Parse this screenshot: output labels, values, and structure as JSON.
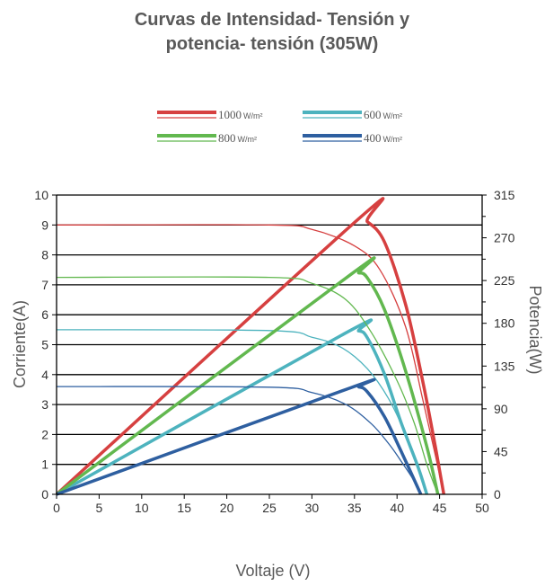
{
  "chart_data": {
    "type": "line",
    "title_lines": [
      "Curvas de Intensidad- Tensión y",
      "potencia- tensión  (305W)"
    ],
    "xlabel": "Voltaje (V)",
    "ylabel_left": "Corriente(A)",
    "ylabel_right": "Potencia(W)",
    "xlim": [
      0,
      50
    ],
    "ylim_left": [
      0,
      10
    ],
    "ylim_right": [
      0,
      315
    ],
    "x_ticks": [
      0,
      5,
      10,
      15,
      20,
      25,
      30,
      35,
      40,
      45,
      50
    ],
    "y_left_ticks": [
      0,
      1,
      2,
      3,
      4,
      5,
      6,
      7,
      8,
      9,
      10
    ],
    "y_right_ticks": [
      0,
      45,
      90,
      135,
      180,
      225,
      270,
      315
    ],
    "grid": "horizontal",
    "legend_position": "top",
    "series": [
      {
        "name": "1000",
        "unit": "W/m²",
        "color": "#d64040",
        "current": [
          [
            0,
            9.0
          ],
          [
            25,
            9.0
          ],
          [
            30,
            8.85
          ],
          [
            35,
            8.3
          ],
          [
            38,
            7.5
          ],
          [
            41,
            5.6
          ],
          [
            43,
            3.2
          ],
          [
            44.5,
            1.3
          ],
          [
            45.5,
            0
          ]
        ],
        "power": [
          [
            0,
            0
          ],
          [
            35.5,
            290
          ],
          [
            36.5,
            287
          ],
          [
            38.5,
            266
          ],
          [
            41,
            200
          ],
          [
            43,
            120
          ],
          [
            44.5,
            50
          ],
          [
            45.5,
            0
          ]
        ]
      },
      {
        "name": "600",
        "unit": "W/m²",
        "color": "#4db3be",
        "current": [
          [
            0,
            5.5
          ],
          [
            25,
            5.47
          ],
          [
            30,
            5.25
          ],
          [
            33.5,
            4.9
          ],
          [
            36.5,
            4.2
          ],
          [
            39,
            3.2
          ],
          [
            41,
            2.0
          ],
          [
            42.5,
            0.8
          ],
          [
            43.5,
            0
          ]
        ],
        "power": [
          [
            0,
            0
          ],
          [
            34,
            170
          ],
          [
            35.5,
            172
          ],
          [
            36.5,
            165
          ],
          [
            38.5,
            127
          ],
          [
            40.5,
            75
          ],
          [
            42.5,
            28
          ],
          [
            43.5,
            0
          ]
        ]
      },
      {
        "name": "800",
        "unit": "W/m²",
        "color": "#62b84f",
        "current": [
          [
            0,
            7.25
          ],
          [
            25,
            7.25
          ],
          [
            30,
            7.05
          ],
          [
            34,
            6.5
          ],
          [
            37,
            5.4
          ],
          [
            40,
            3.8
          ],
          [
            42,
            2.4
          ],
          [
            43.5,
            1.0
          ],
          [
            44.8,
            0
          ]
        ],
        "power": [
          [
            0,
            0
          ],
          [
            34.5,
            231
          ],
          [
            35.5,
            233
          ],
          [
            36.5,
            228
          ],
          [
            38.5,
            195
          ],
          [
            41,
            130
          ],
          [
            43.5,
            50
          ],
          [
            44.8,
            0
          ]
        ]
      },
      {
        "name": "400",
        "unit": "W/m²",
        "color": "#2e5fa0",
        "current": [
          [
            0,
            3.6
          ],
          [
            25,
            3.58
          ],
          [
            30,
            3.4
          ],
          [
            34,
            3.0
          ],
          [
            37,
            2.35
          ],
          [
            39,
            1.7
          ],
          [
            40.5,
            1.1
          ],
          [
            42,
            0.45
          ],
          [
            42.8,
            0
          ]
        ],
        "power": [
          [
            0,
            0
          ],
          [
            34.5,
            112
          ],
          [
            35.5,
            113
          ],
          [
            36.5,
            108
          ],
          [
            38.5,
            82
          ],
          [
            40.5,
            45
          ],
          [
            42.8,
            0
          ]
        ]
      }
    ]
  }
}
